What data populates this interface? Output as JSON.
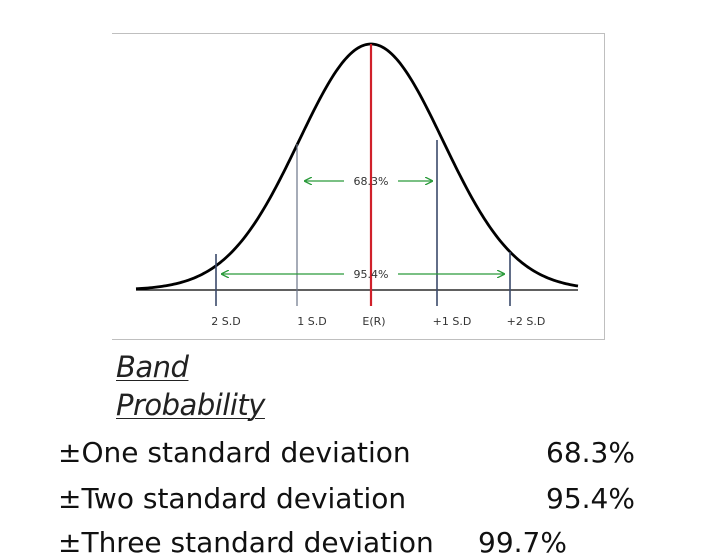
{
  "figure": {
    "axis_labels": [
      "2 S.D",
      "1 S.D",
      "E(R)",
      "+1 S.D",
      "+2 S.D"
    ],
    "inner_band_label": "68.3%",
    "outer_band_label": "95.4%",
    "colors": {
      "curve": "#000000",
      "mean_line": "#d0202a",
      "sd_lines": "#3b4a6b",
      "arrows": "#2a9a3a"
    }
  },
  "heading": {
    "line1": "Band",
    "line2": "Probability"
  },
  "rows": [
    {
      "label": "±One  standard  deviation",
      "value": "68.3%"
    },
    {
      "label": "±Two  standard  deviation",
      "value": "95.4%"
    },
    {
      "label": "±Three  standard  deviation",
      "value": "99.7%"
    }
  ]
}
